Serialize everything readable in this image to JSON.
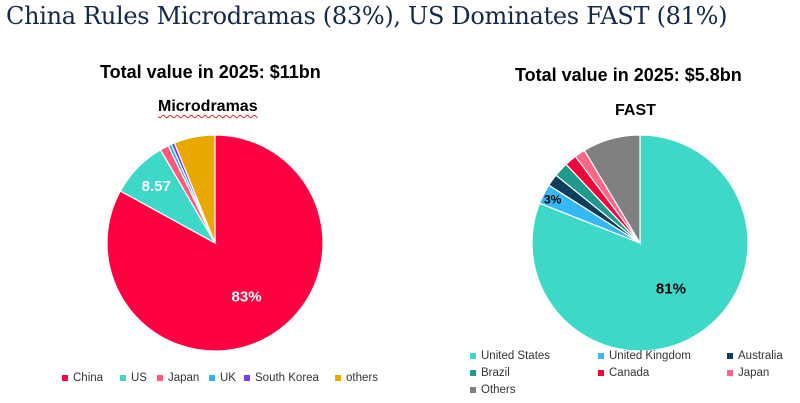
{
  "title": "China Rules Microdramas (83%), US Dominates FAST (81%)",
  "chart_data": [
    {
      "type": "pie",
      "total_label": "Total value in 2025: $11bn",
      "title": "Microdramas",
      "slices": [
        {
          "name": "China",
          "value": 83,
          "color": "#ff0040",
          "label": "83%"
        },
        {
          "name": "US",
          "value": 8.57,
          "color": "#3dd8c8",
          "label": "8.57"
        },
        {
          "name": "Japan",
          "value": 1.3,
          "color": "#ff5a78",
          "label": ""
        },
        {
          "name": "UK",
          "value": 0.5,
          "color": "#2bb5f0",
          "label": ""
        },
        {
          "name": "South Korea",
          "value": 0.5,
          "color": "#7a3cf0",
          "label": ""
        },
        {
          "name": "others",
          "value": 6.13,
          "color": "#e8a800",
          "label": ""
        }
      ]
    },
    {
      "type": "pie",
      "total_label": "Total value in 2025: $5.8bn",
      "title": "FAST",
      "slices": [
        {
          "name": "United States",
          "value": 81,
          "color": "#3dd8c8",
          "label": "81%"
        },
        {
          "name": "United Kingdom",
          "value": 3,
          "color": "#35b8f5",
          "label": "3%"
        },
        {
          "name": "Australia",
          "value": 1.8,
          "color": "#0e3d5e",
          "label": ""
        },
        {
          "name": "Brazil",
          "value": 2.2,
          "color": "#1f9a8c",
          "label": ""
        },
        {
          "name": "Canada",
          "value": 1.8,
          "color": "#f0063a",
          "label": ""
        },
        {
          "name": "Japan",
          "value": 1.6,
          "color": "#ff6585",
          "label": ""
        },
        {
          "name": "Others",
          "value": 8.6,
          "color": "#808080",
          "label": ""
        }
      ]
    }
  ]
}
